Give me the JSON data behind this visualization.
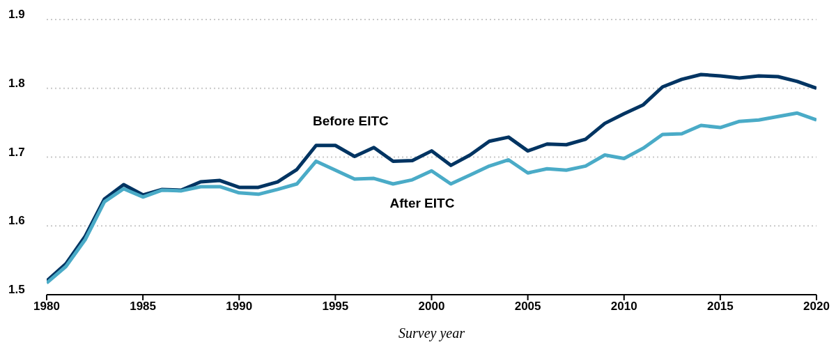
{
  "chart_data": {
    "type": "line",
    "xlabel": "Survey year",
    "x": [
      1980,
      1981,
      1982,
      1983,
      1984,
      1985,
      1986,
      1987,
      1988,
      1989,
      1990,
      1991,
      1992,
      1993,
      1994,
      1995,
      1996,
      1997,
      1998,
      1999,
      2000,
      2001,
      2002,
      2003,
      2004,
      2005,
      2006,
      2007,
      2008,
      2009,
      2010,
      2011,
      2012,
      2013,
      2014,
      2015,
      2016,
      2017,
      2018,
      2019,
      2020
    ],
    "series": [
      {
        "name": "Before EITC",
        "color": "#003462",
        "values": [
          1.52,
          1.545,
          1.585,
          1.639,
          1.66,
          1.645,
          1.653,
          1.652,
          1.664,
          1.666,
          1.656,
          1.656,
          1.664,
          1.682,
          1.717,
          1.717,
          1.701,
          1.714,
          1.694,
          1.695,
          1.709,
          1.688,
          1.703,
          1.723,
          1.729,
          1.709,
          1.719,
          1.718,
          1.726,
          1.749,
          1.763,
          1.776,
          1.802,
          1.813,
          1.82,
          1.818,
          1.815,
          1.818,
          1.817,
          1.81,
          1.8
        ]
      },
      {
        "name": "After EITC",
        "color": "#4aabc7",
        "values": [
          1.517,
          1.541,
          1.58,
          1.635,
          1.654,
          1.642,
          1.652,
          1.651,
          1.657,
          1.657,
          1.648,
          1.646,
          1.653,
          1.661,
          1.694,
          1.681,
          1.668,
          1.669,
          1.661,
          1.667,
          1.68,
          1.661,
          1.674,
          1.687,
          1.696,
          1.677,
          1.683,
          1.681,
          1.687,
          1.703,
          1.698,
          1.713,
          1.733,
          1.734,
          1.746,
          1.743,
          1.752,
          1.754,
          1.759,
          1.764,
          1.754
        ]
      }
    ],
    "xlim": [
      1980,
      2020
    ],
    "xticks": [
      1980,
      1985,
      1990,
      1995,
      2000,
      2005,
      2010,
      2015,
      2020
    ],
    "ylim": [
      1.5,
      1.9
    ],
    "yticks": [
      1.5,
      1.6,
      1.7,
      1.8,
      1.9
    ],
    "grid": "y",
    "legend": false,
    "marker": "none",
    "line_style": "solid"
  }
}
